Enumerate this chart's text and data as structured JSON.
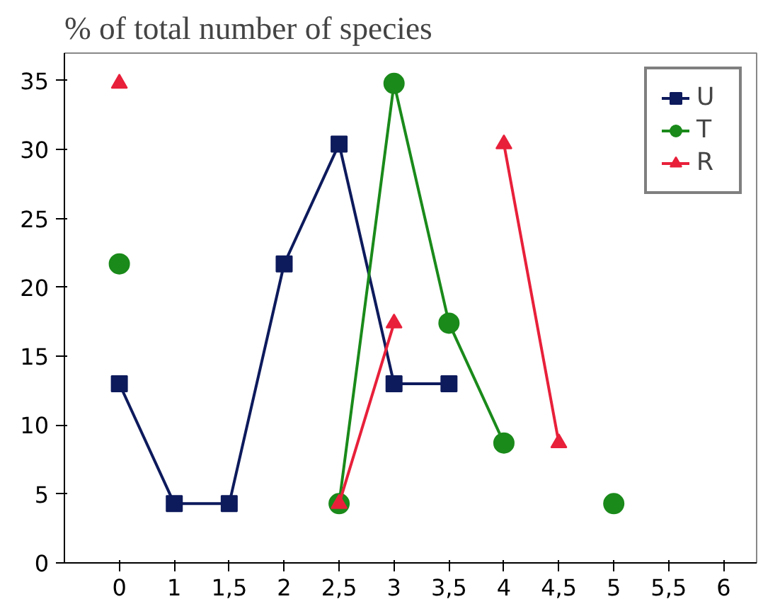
{
  "chart_data": {
    "type": "line",
    "title": "% of total number of species",
    "categories": [
      "0",
      "1",
      "1,5",
      "2",
      "2,5",
      "3",
      "3,5",
      "4",
      "4,5",
      "5",
      "5,5",
      "6"
    ],
    "series": [
      {
        "name": "U",
        "color": "#0d1a5c",
        "marker": "square",
        "values": [
          13,
          4.3,
          4.3,
          21.7,
          30.4,
          13,
          13,
          null,
          null,
          null,
          null,
          null
        ]
      },
      {
        "name": "T",
        "color": "#1a8a1a",
        "marker": "circle",
        "values": [
          21.7,
          null,
          null,
          null,
          4.3,
          34.8,
          17.4,
          8.7,
          null,
          4.3,
          null,
          null
        ]
      },
      {
        "name": "R",
        "color": "#e8203a",
        "marker": "triangle",
        "values": [
          34.8,
          null,
          null,
          null,
          4.3,
          17.4,
          null,
          30.4,
          8.7,
          null,
          null,
          null
        ]
      }
    ],
    "ylim": [
      0,
      37
    ],
    "yticks": [
      0,
      5,
      10,
      15,
      20,
      25,
      30,
      35
    ],
    "grid": false,
    "legend": "top right"
  }
}
